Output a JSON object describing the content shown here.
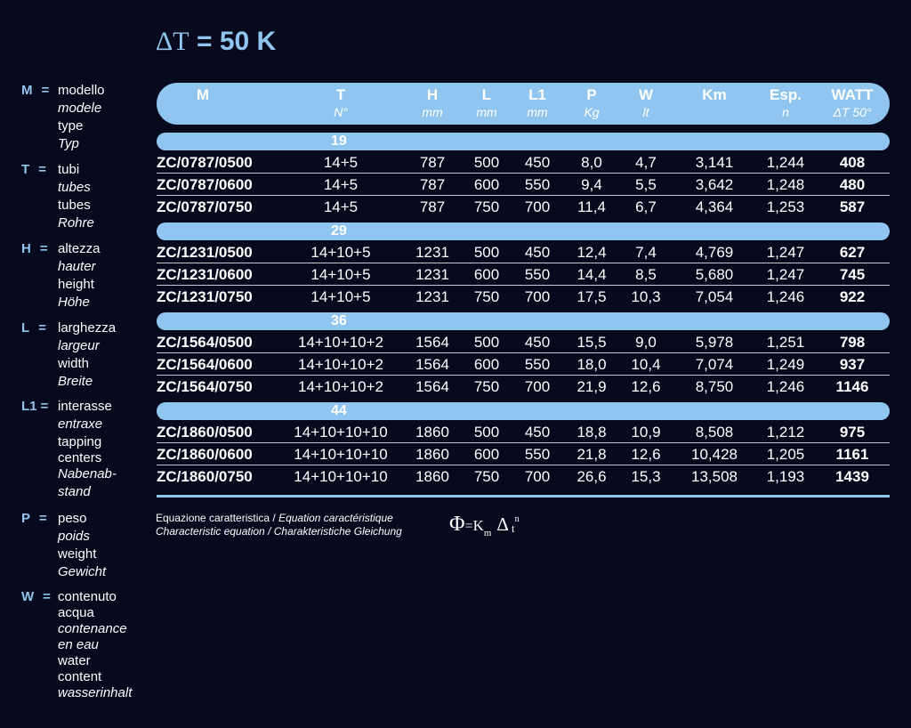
{
  "title": {
    "delta": "ΔT",
    "rest": " = 50 K"
  },
  "legend": [
    {
      "key": "M",
      "eq": "=",
      "lines": [
        {
          "text": "modello"
        },
        {
          "text": "modele",
          "it": true
        },
        {
          "text": "type"
        },
        {
          "text": "Typ",
          "it": true
        }
      ]
    },
    {
      "key": "T",
      "eq": "=",
      "lines": [
        {
          "text": "tubi"
        },
        {
          "text": "tubes",
          "it": true
        },
        {
          "text": "tubes"
        },
        {
          "text": "Rohre",
          "it": true
        }
      ]
    },
    {
      "key": "H",
      "eq": "=",
      "lines": [
        {
          "text": "altezza"
        },
        {
          "text": "hauter",
          "it": true
        },
        {
          "text": "height"
        },
        {
          "text": "Höhe",
          "it": true
        }
      ]
    },
    {
      "key": "L",
      "eq": "=",
      "lines": [
        {
          "text": "larghezza"
        },
        {
          "text": "largeur",
          "it": true
        },
        {
          "text": "width"
        },
        {
          "text": "Breite",
          "it": true
        }
      ]
    },
    {
      "key": "L1",
      "eq": "=",
      "lines": [
        {
          "text": "interasse"
        },
        {
          "text": "entraxe",
          "it": true
        },
        {
          "text": "tapping"
        },
        {
          "text": "centers"
        },
        {
          "text": "Nabenab-",
          "it": true
        },
        {
          "text": "stand",
          "it": true
        }
      ]
    },
    {
      "key": "P",
      "eq": "=",
      "lines": [
        {
          "text": "peso"
        },
        {
          "text": "poids",
          "it": true
        },
        {
          "text": "weight"
        },
        {
          "text": "Gewicht",
          "it": true
        }
      ]
    },
    {
      "key": "W",
      "eq": "=",
      "lines": [
        {
          "text": "contenuto"
        },
        {
          "text": "acqua"
        },
        {
          "text": "contenance",
          "it": true
        },
        {
          "text": "en eau",
          "it": true
        },
        {
          "text": "water"
        },
        {
          "text": "content"
        },
        {
          "text": "wasserinhalt",
          "it": true
        }
      ]
    }
  ],
  "table": {
    "headers": [
      {
        "name": "M",
        "unit": ""
      },
      {
        "name": "T",
        "unit": "N°"
      },
      {
        "name": "H",
        "unit": "mm"
      },
      {
        "name": "L",
        "unit": "mm"
      },
      {
        "name": "L1",
        "unit": "mm"
      },
      {
        "name": "P",
        "unit": "Kg"
      },
      {
        "name": "W",
        "unit": "lt"
      },
      {
        "name": "Km",
        "unit": ""
      },
      {
        "name": "Esp.",
        "unit": "n"
      },
      {
        "name": "WATT",
        "unit": "ΔT 50°"
      }
    ],
    "groups": [
      {
        "label": "19",
        "rows": [
          [
            "ZC/0787/0500",
            "14+5",
            "787",
            "500",
            "450",
            "8,0",
            "4,7",
            "3,141",
            "1,244",
            "408"
          ],
          [
            "ZC/0787/0600",
            "14+5",
            "787",
            "600",
            "550",
            "9,4",
            "5,5",
            "3,642",
            "1,248",
            "480"
          ],
          [
            "ZC/0787/0750",
            "14+5",
            "787",
            "750",
            "700",
            "11,4",
            "6,7",
            "4,364",
            "1,253",
            "587"
          ]
        ]
      },
      {
        "label": "29",
        "rows": [
          [
            "ZC/1231/0500",
            "14+10+5",
            "1231",
            "500",
            "450",
            "12,4",
            "7,4",
            "4,769",
            "1,247",
            "627"
          ],
          [
            "ZC/1231/0600",
            "14+10+5",
            "1231",
            "600",
            "550",
            "14,4",
            "8,5",
            "5,680",
            "1,247",
            "745"
          ],
          [
            "ZC/1231/0750",
            "14+10+5",
            "1231",
            "750",
            "700",
            "17,5",
            "10,3",
            "7,054",
            "1,246",
            "922"
          ]
        ]
      },
      {
        "label": "36",
        "rows": [
          [
            "ZC/1564/0500",
            "14+10+10+2",
            "1564",
            "500",
            "450",
            "15,5",
            "9,0",
            "5,978",
            "1,251",
            "798"
          ],
          [
            "ZC/1564/0600",
            "14+10+10+2",
            "1564",
            "600",
            "550",
            "18,0",
            "10,4",
            "7,074",
            "1,249",
            "937"
          ],
          [
            "ZC/1564/0750",
            "14+10+10+2",
            "1564",
            "750",
            "700",
            "21,9",
            "12,6",
            "8,750",
            "1,246",
            "1146"
          ]
        ]
      },
      {
        "label": "44",
        "rows": [
          [
            "ZC/1860/0500",
            "14+10+10+10",
            "1860",
            "500",
            "450",
            "18,8",
            "10,9",
            "8,508",
            "1,212",
            "975"
          ],
          [
            "ZC/1860/0600",
            "14+10+10+10",
            "1860",
            "600",
            "550",
            "21,8",
            "12,6",
            "10,428",
            "1,205",
            "1161"
          ],
          [
            "ZC/1860/0750",
            "14+10+10+10",
            "1860",
            "750",
            "700",
            "26,6",
            "15,3",
            "13,508",
            "1,193",
            "1439"
          ]
        ]
      }
    ]
  },
  "equation": {
    "line1_a": "Equazione caratteristica / ",
    "line1_b": "Equation caractéristique",
    "line2": "Characteristic equation / Charakteristiche Gleichung",
    "phi": "Φ",
    "eq": "=",
    "k": "K",
    "k_sub": "m",
    "delta": "Δ",
    "t": "t",
    "exp": "n"
  }
}
